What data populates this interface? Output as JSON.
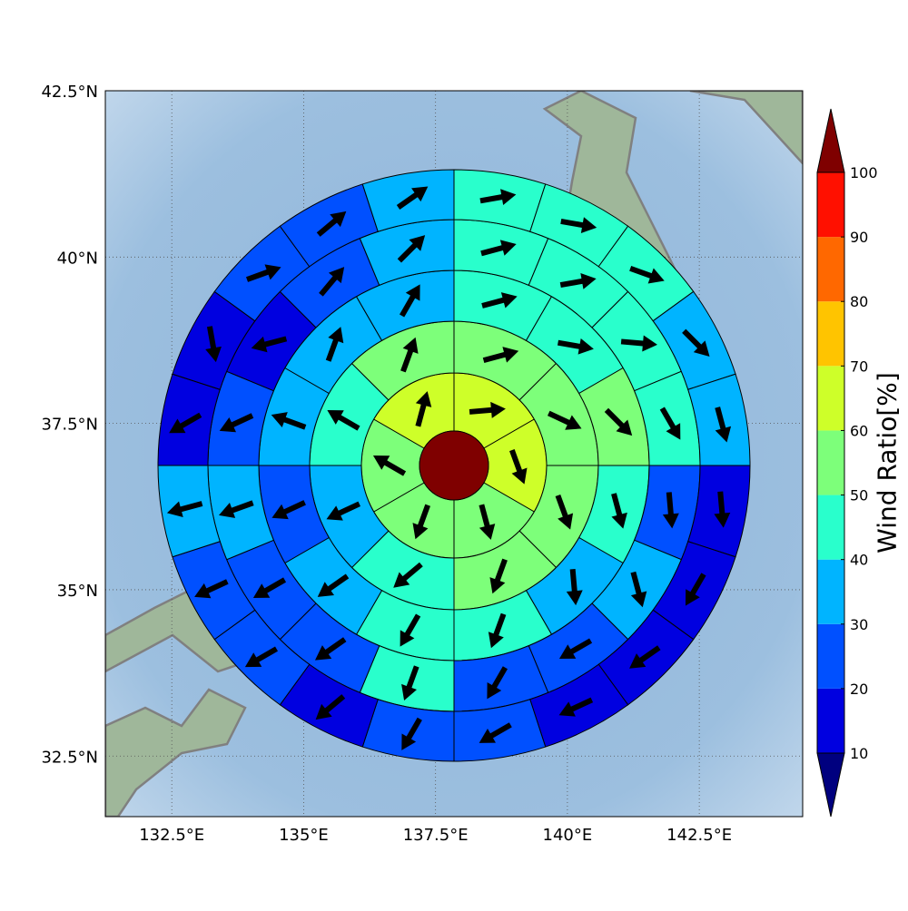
{
  "chart_data": {
    "type": "polar-grid-map",
    "xlim": [
      131.24,
      144.46
    ],
    "ylim": [
      31.59,
      42.5
    ],
    "xticks": [
      {
        "value": 132.5,
        "label": "132.5°E"
      },
      {
        "value": 135,
        "label": "135°E"
      },
      {
        "value": 137.5,
        "label": "137.5°E"
      },
      {
        "value": 140,
        "label": "140°E"
      },
      {
        "value": 142.5,
        "label": "142.5°E"
      }
    ],
    "yticks": [
      {
        "value": 32.5,
        "label": "32.5°N"
      },
      {
        "value": 35,
        "label": "35°N"
      },
      {
        "value": 37.5,
        "label": "37.5°N"
      },
      {
        "value": 40,
        "label": "40°N"
      },
      {
        "value": 42.5,
        "label": "42.5°N"
      }
    ],
    "grid": true,
    "colorbar": {
      "label": "Wind Ratio[%]",
      "levels": [
        10,
        20,
        30,
        40,
        50,
        60,
        70,
        80,
        90,
        100
      ],
      "colors": [
        "#00007f",
        "#0000e0",
        "#0050ff",
        "#00b4ff",
        "#29ffcc",
        "#7dff7a",
        "#ceff29",
        "#ffc400",
        "#ff6800",
        "#ff1000",
        "#7f0000"
      ]
    },
    "center": {
      "value": 100
    },
    "rings": [
      {
        "values": [
          65,
          65,
          55,
          55,
          55,
          65
        ],
        "directions": [
          85,
          160,
          165,
          200,
          300,
          15
        ]
      },
      {
        "values": [
          55,
          55,
          55,
          55,
          45,
          35,
          45,
          55
        ],
        "directions": [
          75,
          115,
          160,
          200,
          230,
          245,
          300,
          20
        ]
      },
      {
        "values": [
          45,
          45,
          55,
          45,
          35,
          45,
          45,
          35,
          25,
          35,
          35,
          35
        ],
        "directions": [
          75,
          100,
          135,
          165,
          175,
          200,
          210,
          235,
          245,
          290,
          20,
          30
        ]
      },
      {
        "values": [
          45,
          45,
          45,
          45,
          25,
          35,
          25,
          25,
          45,
          25,
          25,
          35,
          25,
          15,
          25,
          35
        ],
        "directions": [
          75,
          80,
          95,
          150,
          175,
          165,
          240,
          210,
          200,
          235,
          240,
          250,
          245,
          255,
          40,
          45
        ]
      },
      {
        "values": [
          45,
          45,
          45,
          35,
          35,
          15,
          15,
          15,
          15,
          25,
          25,
          15,
          25,
          25,
          35,
          15,
          15,
          25,
          25,
          35
        ],
        "directions": [
          80,
          100,
          110,
          135,
          165,
          175,
          210,
          235,
          245,
          240,
          210,
          230,
          240,
          245,
          255,
          240,
          170,
          70,
          50,
          55
        ]
      }
    ]
  }
}
